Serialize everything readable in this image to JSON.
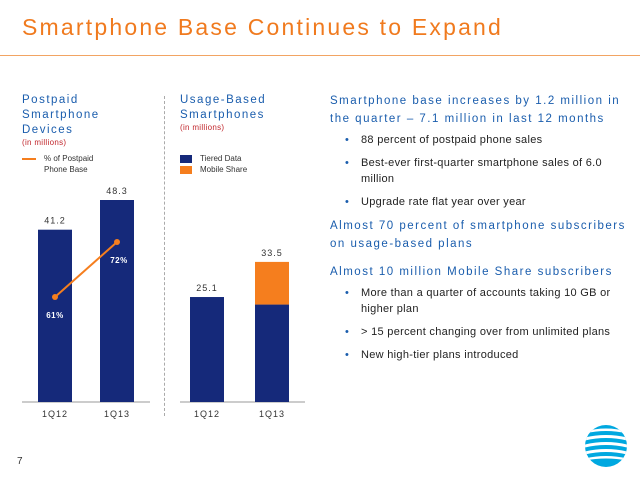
{
  "title": "Smartphone Base Continues to Expand",
  "page_number": "7",
  "logo": "AT&T globe",
  "colors": {
    "navy": "#15297a",
    "orange": "#f57e1e",
    "title_orange": "#f07a1e",
    "accent_blue": "#1a5dad"
  },
  "left_panel": {
    "title_line1": "Postpaid",
    "title_line2": "Smartphone",
    "title_line3": "Devices",
    "subtitle": "(in millions)",
    "legend_line1": "% of Postpaid",
    "legend_line2": "Phone Base"
  },
  "right_panel": {
    "title_line1": "Usage-Based",
    "title_line2": "Smartphones",
    "subtitle": "(in millions)",
    "legend_tiered": "Tiered Data",
    "legend_mobile": "Mobile Share"
  },
  "chart_data": [
    {
      "type": "bar",
      "title": "Postpaid Smartphone Devices (in millions)",
      "categories": [
        "1Q12",
        "1Q13"
      ],
      "values": [
        41.2,
        48.3
      ],
      "value_labels": [
        "41.2",
        "48.3"
      ],
      "ylim": [
        0,
        48.3
      ],
      "overlay_line": {
        "name": "% of Postpaid Phone Base",
        "values": [
          61,
          72
        ],
        "labels": [
          "61%",
          "72%"
        ],
        "ylim": [
          40,
          100
        ]
      }
    },
    {
      "type": "bar",
      "title": "Usage-Based Smartphones (in millions)",
      "categories": [
        "1Q12",
        "1Q13"
      ],
      "series": [
        {
          "name": "Tiered Data",
          "values": [
            25.1,
            23.3
          ]
        },
        {
          "name": "Mobile Share",
          "values": [
            0,
            10.2
          ]
        }
      ],
      "total_labels": [
        "25.1",
        "33.5"
      ],
      "ylim": [
        0,
        48.3
      ]
    }
  ],
  "bullets": {
    "h1": "Smartphone base increases by 1.2 million in the quarter – 7.1 million in last 12 months",
    "h1_items": [
      "88 percent of postpaid phone sales",
      "Best-ever first-quarter smartphone sales of 6.0 million",
      "Upgrade rate flat year over year"
    ],
    "h2": "Almost 70 percent of smartphone subscribers on usage-based plans",
    "h3": "Almost 10 million Mobile Share subscribers",
    "h3_items": [
      "More than a quarter of accounts taking 10 GB or higher plan",
      "> 15 percent changing over from unlimited plans",
      "New high-tier plans introduced"
    ]
  }
}
